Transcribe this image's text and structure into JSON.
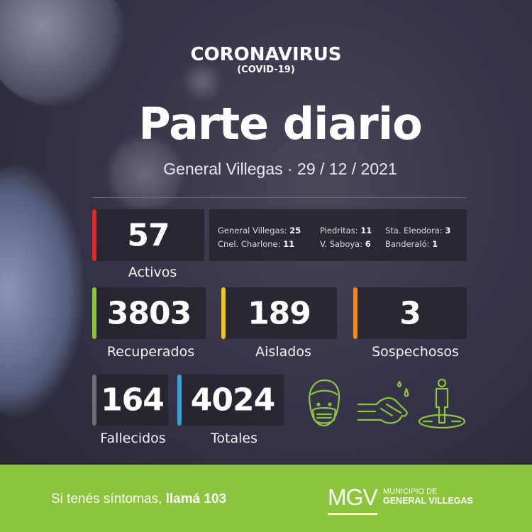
{
  "header": {
    "title": "CORONAVIRUS",
    "subtitle": "(COVID-19)",
    "main_title": "Parte diario",
    "location_date": "General Villegas · 29 / 12 / 2021"
  },
  "stats": {
    "activos": {
      "value": "57",
      "label": "Activos",
      "color": "#e0262a"
    },
    "recuperados": {
      "value": "3803",
      "label": "Recuperados",
      "color": "#8cc43c"
    },
    "aislados": {
      "value": "189",
      "label": "Aislados",
      "color": "#f2c21b"
    },
    "sospechosos": {
      "value": "3",
      "label": "Sospechosos",
      "color": "#f08a1c"
    },
    "fallecidos": {
      "value": "164",
      "label": "Fallecidos",
      "color": "#6e6e78"
    },
    "totales": {
      "value": "4024",
      "label": "Totales",
      "color": "#3aa0d8"
    }
  },
  "locations": [
    {
      "name": "General Villegas:",
      "value": "25"
    },
    {
      "name": "Piedritas:",
      "value": "11"
    },
    {
      "name": "Sta. Eleodora:",
      "value": "3"
    },
    {
      "name": "Cnel. Charlone:",
      "value": "11"
    },
    {
      "name": "V. Saboya:",
      "value": "6"
    },
    {
      "name": "Banderaló:",
      "value": "1"
    }
  ],
  "icons": [
    "face-mask-icon",
    "hand-washing-icon",
    "social-distance-icon"
  ],
  "footer": {
    "text": "Si tenés síntomas, ",
    "cta": "llamá 103",
    "logo_letters": "MGV",
    "logo_line1": "MUNICIPIO DE",
    "logo_line2": "GENERAL VILLEGAS",
    "color": "#8cc43c"
  }
}
